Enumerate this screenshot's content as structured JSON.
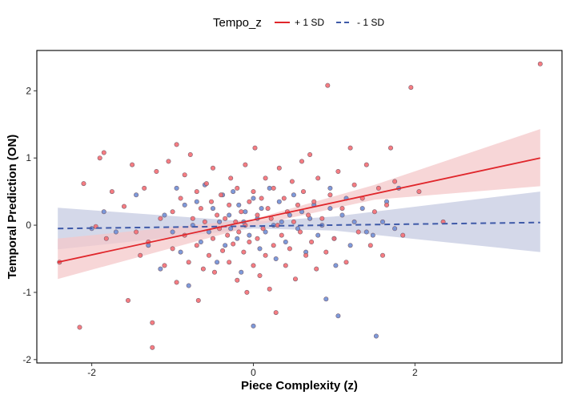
{
  "chart_data": {
    "type": "scatter",
    "title": "",
    "xlabel": "Piece Complexity (z)",
    "ylabel": "Temporal Prediction (ON)",
    "xlim": [
      -2.68,
      3.82
    ],
    "ylim": [
      -2.05,
      2.6
    ],
    "x_ticks": [
      -2,
      0,
      2
    ],
    "x_tick_labels": [
      "-2",
      "0",
      "2"
    ],
    "y_ticks": [
      -2,
      -1,
      0,
      1,
      2
    ],
    "y_tick_labels": [
      "-2",
      "-1",
      "0",
      "1",
      "2"
    ],
    "grid": false,
    "legend": {
      "title": "Tempo_z",
      "position": "top",
      "entries": [
        "+ 1 SD",
        "- 1 SD"
      ]
    },
    "colors": {
      "plus": "#e0262b",
      "minus": "#3f5aa8",
      "plus_band": "#f4c8ca",
      "minus_band": "#c9cee3",
      "point_plus": "#f56e73",
      "point_minus": "#6f8fd6",
      "point_stroke": "#7a5f6e"
    },
    "series": [
      {
        "name": "+ 1 SD",
        "line": {
          "x": [
            -2.42,
            3.55
          ],
          "y": [
            -0.55,
            1.0
          ]
        },
        "band_upper": [
          [
            -2.42,
            -0.2
          ],
          [
            0.0,
            0.09
          ],
          [
            1.5,
            0.6
          ],
          [
            3.55,
            1.43
          ]
        ],
        "band_lower": [
          [
            -2.42,
            -0.8
          ],
          [
            0.0,
            -0.01
          ],
          [
            1.5,
            0.38
          ],
          [
            3.55,
            0.58
          ]
        ],
        "points": [
          [
            -2.4,
            -0.55
          ],
          [
            -2.15,
            -1.52
          ],
          [
            -2.1,
            0.62
          ],
          [
            -1.95,
            -0.02
          ],
          [
            -1.9,
            1.0
          ],
          [
            -1.85,
            1.08
          ],
          [
            -1.82,
            -0.2
          ],
          [
            -1.75,
            0.5
          ],
          [
            -1.6,
            0.28
          ],
          [
            -1.55,
            -1.12
          ],
          [
            -1.5,
            0.9
          ],
          [
            -1.45,
            -0.1
          ],
          [
            -1.4,
            -0.45
          ],
          [
            -1.35,
            0.55
          ],
          [
            -1.3,
            -0.25
          ],
          [
            -1.25,
            -1.82
          ],
          [
            -1.25,
            -1.45
          ],
          [
            -1.2,
            0.8
          ],
          [
            -1.15,
            0.1
          ],
          [
            -1.1,
            -0.6
          ],
          [
            -1.05,
            0.95
          ],
          [
            -1.0,
            -0.35
          ],
          [
            -1.0,
            0.2
          ],
          [
            -0.95,
            -0.85
          ],
          [
            -0.95,
            1.2
          ],
          [
            -0.9,
            0.4
          ],
          [
            -0.85,
            -0.15
          ],
          [
            -0.85,
            0.75
          ],
          [
            -0.8,
            -0.55
          ],
          [
            -0.78,
            1.05
          ],
          [
            -0.75,
            0.1
          ],
          [
            -0.7,
            -0.3
          ],
          [
            -0.7,
            0.5
          ],
          [
            -0.68,
            -1.12
          ],
          [
            -0.65,
            0.25
          ],
          [
            -0.62,
            -0.65
          ],
          [
            -0.6,
            0.05
          ],
          [
            -0.58,
            0.62
          ],
          [
            -0.55,
            -0.45
          ],
          [
            -0.52,
            0.35
          ],
          [
            -0.5,
            -0.2
          ],
          [
            -0.5,
            0.85
          ],
          [
            -0.48,
            -0.7
          ],
          [
            -0.45,
            0.15
          ],
          [
            -0.42,
            -0.05
          ],
          [
            -0.4,
            0.45
          ],
          [
            -0.38,
            -0.38
          ],
          [
            -0.35,
            0.1
          ],
          [
            -0.32,
            -0.15
          ],
          [
            -0.3,
            0.3
          ],
          [
            -0.3,
            -0.55
          ],
          [
            -0.28,
            0.7
          ],
          [
            -0.25,
            -0.28
          ],
          [
            -0.22,
            0.05
          ],
          [
            -0.2,
            -0.82
          ],
          [
            -0.2,
            0.55
          ],
          [
            -0.18,
            -0.1
          ],
          [
            -0.15,
            0.2
          ],
          [
            -0.12,
            -0.4
          ],
          [
            -0.1,
            0.9
          ],
          [
            -0.1,
            0.0
          ],
          [
            -0.08,
            -1.0
          ],
          [
            -0.05,
            0.35
          ],
          [
            -0.05,
            -0.25
          ],
          [
            0.0,
            0.5
          ],
          [
            0.0,
            -0.6
          ],
          [
            0.02,
            1.15
          ],
          [
            0.05,
            0.15
          ],
          [
            0.05,
            -0.2
          ],
          [
            0.08,
            -0.75
          ],
          [
            0.1,
            0.4
          ],
          [
            0.12,
            -0.05
          ],
          [
            0.15,
            0.7
          ],
          [
            0.15,
            -0.45
          ],
          [
            0.18,
            0.25
          ],
          [
            0.2,
            -0.95
          ],
          [
            0.22,
            0.1
          ],
          [
            0.25,
            -0.3
          ],
          [
            0.25,
            0.55
          ],
          [
            0.28,
            -1.3
          ],
          [
            0.3,
            0.0
          ],
          [
            0.32,
            0.85
          ],
          [
            0.35,
            -0.15
          ],
          [
            0.38,
            0.4
          ],
          [
            0.4,
            -0.6
          ],
          [
            0.42,
            0.2
          ],
          [
            0.45,
            -0.35
          ],
          [
            0.48,
            0.65
          ],
          [
            0.5,
            0.05
          ],
          [
            0.52,
            -0.8
          ],
          [
            0.55,
            0.3
          ],
          [
            0.58,
            -0.1
          ],
          [
            0.6,
            0.95
          ],
          [
            0.62,
            0.5
          ],
          [
            0.65,
            -0.45
          ],
          [
            0.68,
            0.15
          ],
          [
            0.7,
            1.05
          ],
          [
            0.72,
            -0.25
          ],
          [
            0.75,
            0.35
          ],
          [
            0.78,
            -0.65
          ],
          [
            0.8,
            0.7
          ],
          [
            0.85,
            0.1
          ],
          [
            0.9,
            -0.4
          ],
          [
            0.92,
            2.08
          ],
          [
            0.95,
            0.45
          ],
          [
            1.0,
            -0.2
          ],
          [
            1.05,
            0.8
          ],
          [
            1.1,
            0.25
          ],
          [
            1.15,
            -0.55
          ],
          [
            1.2,
            1.15
          ],
          [
            1.25,
            0.6
          ],
          [
            1.3,
            -0.1
          ],
          [
            1.35,
            0.4
          ],
          [
            1.4,
            0.9
          ],
          [
            1.45,
            -0.3
          ],
          [
            1.5,
            0.2
          ],
          [
            1.55,
            0.55
          ],
          [
            1.6,
            -0.45
          ],
          [
            1.65,
            0.3
          ],
          [
            1.7,
            1.15
          ],
          [
            1.75,
            0.65
          ],
          [
            1.85,
            -0.15
          ],
          [
            1.95,
            2.05
          ],
          [
            2.05,
            0.5
          ],
          [
            2.35,
            0.05
          ],
          [
            3.55,
            2.4
          ]
        ]
      },
      {
        "name": "- 1 SD",
        "line": {
          "x": [
            -2.42,
            3.55
          ],
          "y": [
            -0.05,
            0.04
          ]
        },
        "band_upper": [
          [
            -2.42,
            0.26
          ],
          [
            0.0,
            0.05
          ],
          [
            1.0,
            0.13
          ],
          [
            3.55,
            0.5
          ]
        ],
        "band_lower": [
          [
            -2.42,
            -0.36
          ],
          [
            0.0,
            -0.05
          ],
          [
            1.0,
            -0.08
          ],
          [
            3.55,
            -0.4
          ]
        ],
        "points": [
          [
            -2.0,
            -0.05
          ],
          [
            -1.85,
            0.2
          ],
          [
            -1.7,
            -0.1
          ],
          [
            -1.45,
            0.45
          ],
          [
            -1.3,
            -0.3
          ],
          [
            -1.15,
            -0.65
          ],
          [
            -1.1,
            0.15
          ],
          [
            -1.0,
            -0.1
          ],
          [
            -0.95,
            0.55
          ],
          [
            -0.9,
            -0.4
          ],
          [
            -0.85,
            0.3
          ],
          [
            -0.8,
            -0.9
          ],
          [
            -0.75,
            0.0
          ],
          [
            -0.7,
            0.35
          ],
          [
            -0.65,
            -0.25
          ],
          [
            -0.6,
            0.6
          ],
          [
            -0.55,
            -0.1
          ],
          [
            -0.5,
            0.25
          ],
          [
            -0.45,
            -0.55
          ],
          [
            -0.42,
            0.05
          ],
          [
            -0.38,
            0.45
          ],
          [
            -0.35,
            -0.3
          ],
          [
            -0.3,
            0.15
          ],
          [
            -0.28,
            -0.05
          ],
          [
            -0.25,
            0.5
          ],
          [
            -0.2,
            -0.2
          ],
          [
            -0.18,
            0.3
          ],
          [
            -0.15,
            -0.7
          ],
          [
            -0.12,
            0.05
          ],
          [
            -0.1,
            0.2
          ],
          [
            -0.05,
            -0.15
          ],
          [
            0.0,
            0.4
          ],
          [
            0.0,
            -1.5
          ],
          [
            0.05,
            0.1
          ],
          [
            0.08,
            -0.35
          ],
          [
            0.1,
            0.25
          ],
          [
            0.15,
            -0.1
          ],
          [
            0.2,
            0.55
          ],
          [
            0.25,
            0.0
          ],
          [
            0.28,
            -0.5
          ],
          [
            0.32,
            0.35
          ],
          [
            0.35,
            0.05
          ],
          [
            0.4,
            -0.25
          ],
          [
            0.45,
            0.15
          ],
          [
            0.5,
            0.45
          ],
          [
            0.55,
            -0.05
          ],
          [
            0.6,
            0.2
          ],
          [
            0.65,
            -0.4
          ],
          [
            0.7,
            0.1
          ],
          [
            0.75,
            0.3
          ],
          [
            0.8,
            -0.15
          ],
          [
            0.85,
            0.0
          ],
          [
            0.9,
            -1.1
          ],
          [
            0.95,
            0.25
          ],
          [
            1.0,
            -0.2
          ],
          [
            1.02,
            -0.6
          ],
          [
            1.1,
            0.15
          ],
          [
            1.15,
            0.4
          ],
          [
            1.2,
            -0.3
          ],
          [
            1.25,
            0.05
          ],
          [
            1.35,
            0.25
          ],
          [
            1.4,
            -0.1
          ],
          [
            1.48,
            -0.15
          ],
          [
            1.52,
            -1.65
          ],
          [
            1.6,
            0.05
          ],
          [
            1.65,
            0.35
          ],
          [
            1.75,
            -0.05
          ],
          [
            1.8,
            0.55
          ],
          [
            1.05,
            -1.35
          ],
          [
            0.95,
            0.55
          ]
        ]
      }
    ]
  }
}
